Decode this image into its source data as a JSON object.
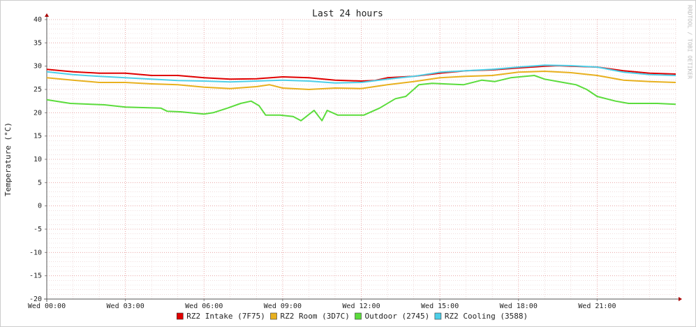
{
  "chart_data": {
    "type": "line",
    "title": "Last 24 hours",
    "y_label": "Temperature (°C)",
    "watermark": "RRDTOOL / TOBI OETIKER",
    "xlim": [
      0,
      24
    ],
    "xticks": [
      {
        "value": 0,
        "label": "Wed 00:00"
      },
      {
        "value": 3,
        "label": "Wed 03:00"
      },
      {
        "value": 6,
        "label": "Wed 06:00"
      },
      {
        "value": 9,
        "label": "Wed 09:00"
      },
      {
        "value": 12,
        "label": "Wed 12:00"
      },
      {
        "value": 15,
        "label": "Wed 15:00"
      },
      {
        "value": 18,
        "label": "Wed 18:00"
      },
      {
        "value": 21,
        "label": "Wed 21:00"
      }
    ],
    "ylim": [
      -20,
      40
    ],
    "yticks": [
      -20,
      -15,
      -10,
      -5,
      0,
      5,
      10,
      15,
      20,
      25,
      30,
      35,
      40
    ],
    "grid": true,
    "legend": "bottom",
    "series": [
      {
        "name": "RZ2 Intake (7F75)",
        "color": "#e00000",
        "x": [
          0,
          1,
          2,
          3,
          4,
          5,
          6,
          7,
          8,
          9,
          10,
          11,
          12,
          12.5,
          13,
          14,
          15,
          16,
          17,
          18,
          19,
          19.5,
          20,
          21,
          22,
          23,
          24
        ],
        "values": [
          29.3,
          28.8,
          28.5,
          28.5,
          28.0,
          28.0,
          27.5,
          27.2,
          27.3,
          27.7,
          27.5,
          27.0,
          26.8,
          26.9,
          27.5,
          27.8,
          28.5,
          29.0,
          29.2,
          29.6,
          30.0,
          30.1,
          30.0,
          29.8,
          29.0,
          28.5,
          28.3
        ]
      },
      {
        "name": "RZ2 Room (3D7C)",
        "color": "#e8b01e",
        "x": [
          0,
          1,
          2,
          3,
          4,
          5,
          6,
          7,
          8,
          8.5,
          9,
          10,
          11,
          12,
          13,
          14,
          15,
          16,
          17,
          18,
          19,
          20,
          21,
          22,
          23,
          24
        ],
        "values": [
          27.5,
          27.0,
          26.5,
          26.5,
          26.2,
          26.0,
          25.5,
          25.2,
          25.6,
          26.0,
          25.3,
          25.0,
          25.3,
          25.2,
          26.0,
          26.7,
          27.5,
          27.8,
          28.0,
          28.7,
          28.9,
          28.6,
          28.0,
          27.0,
          26.7,
          26.5
        ]
      },
      {
        "name": "Outdoor (2745)",
        "color": "#5bdc3c",
        "x": [
          0,
          0.9,
          2.2,
          3,
          4.35,
          4.6,
          5.1,
          6,
          6.35,
          6.9,
          7.4,
          7.8,
          8.1,
          8.35,
          8.9,
          9.4,
          9.7,
          10.2,
          10.5,
          10.7,
          11.1,
          12.1,
          12.7,
          13.3,
          13.7,
          14.2,
          14.7,
          15.9,
          16.6,
          17.1,
          17.7,
          18.6,
          19,
          19.7,
          20.2,
          20.6,
          21,
          21.7,
          22.2,
          23.3,
          24
        ],
        "values": [
          22.8,
          22.0,
          21.7,
          21.2,
          21.0,
          20.3,
          20.2,
          19.7,
          20.0,
          21.0,
          22.0,
          22.5,
          21.5,
          19.5,
          19.5,
          19.2,
          18.3,
          20.5,
          18.3,
          20.5,
          19.5,
          19.5,
          21.0,
          23.0,
          23.5,
          26.0,
          26.3,
          26.0,
          27.0,
          26.7,
          27.5,
          28.0,
          27.2,
          26.5,
          26.0,
          25.0,
          23.5,
          22.5,
          22.0,
          22.0,
          21.8
        ]
      },
      {
        "name": "RZ2 Cooling (3588)",
        "color": "#4dcfe8",
        "x": [
          0,
          1,
          2,
          3,
          4,
          5,
          6,
          7,
          8,
          9,
          10,
          11,
          12,
          13,
          14,
          15,
          16,
          17,
          18,
          19,
          20,
          21,
          22,
          23,
          24
        ],
        "values": [
          28.8,
          28.2,
          27.8,
          27.5,
          27.2,
          26.9,
          26.8,
          26.6,
          26.8,
          27.0,
          26.8,
          26.4,
          26.5,
          27.2,
          27.8,
          28.7,
          29.0,
          29.3,
          29.8,
          30.2,
          30.1,
          29.8,
          28.7,
          28.2,
          28.0
        ]
      }
    ]
  }
}
